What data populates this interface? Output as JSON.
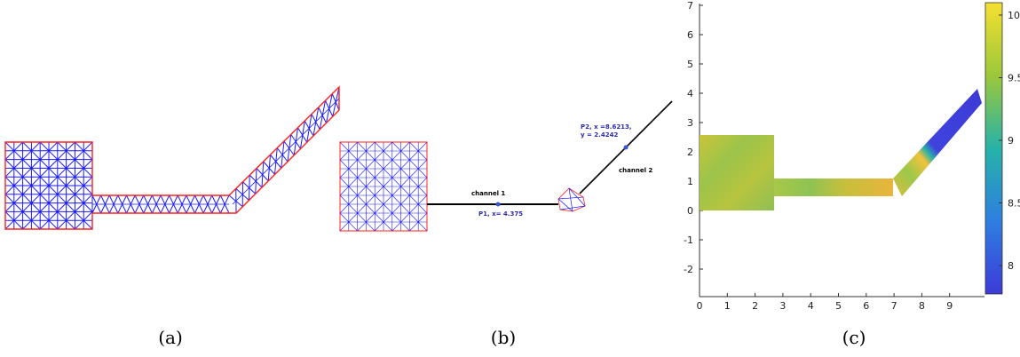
{
  "captions": {
    "a": "(a)",
    "b": "(b)",
    "c": "(c)"
  },
  "network": {
    "channel1_label": "channel 1",
    "channel2_label": "channel 2",
    "point1_label": "P1, x= 4.375",
    "point2_label_line1": "P2, x =8.6213,",
    "point2_label_line2": "y = 2.4242"
  },
  "colors": {
    "mesh_edge": "#1a1aff",
    "mesh_boundary": "#ff2020",
    "channel_line": "#000000",
    "annotation_text": "#2b2bb0",
    "point_marker": "#3355dd",
    "colormap_low": "#3d3ad8",
    "colormap_mid": "#26b2a8",
    "colormap_high": "#f5e030"
  },
  "heatmap": {
    "x_ticks": [
      "0",
      "1",
      "2",
      "3",
      "4",
      "5",
      "6",
      "7",
      "8",
      "9"
    ],
    "y_ticks": [
      "7",
      "6",
      "5",
      "4",
      "3",
      "2",
      "1",
      "0",
      "-1",
      "-2"
    ],
    "colorbar_ticks": [
      "10",
      "9.5",
      "9",
      "8.5",
      "8"
    ]
  }
}
